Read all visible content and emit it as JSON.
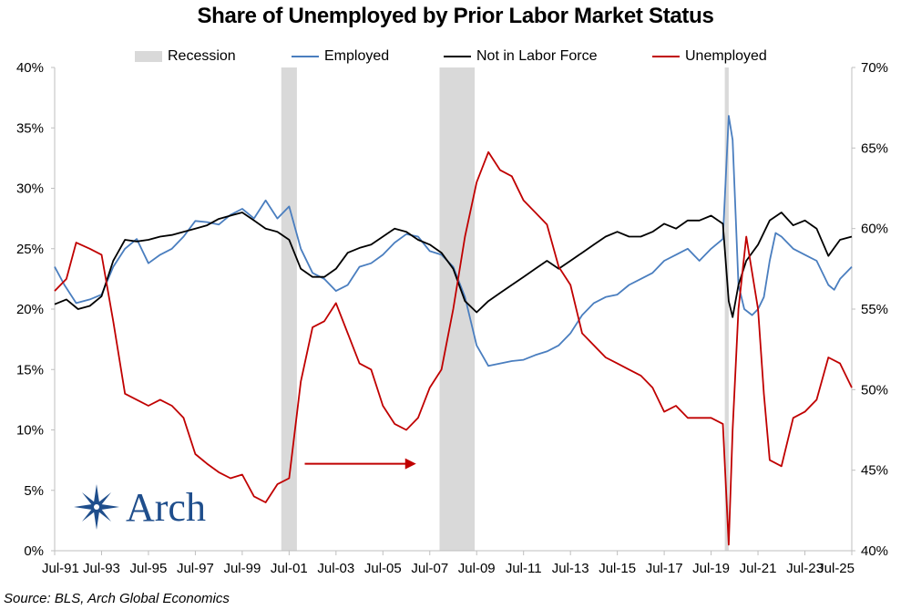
{
  "title": "Share of Unemployed by Prior Labor Market Status",
  "source": "Source: BLS, Arch Global Economics",
  "logo": {
    "text": "Arch",
    "color": "#1f4e8c",
    "icon": "compass-star-icon"
  },
  "legend": [
    {
      "name": "Recession",
      "color": "#d9d9d9",
      "kind": "band"
    },
    {
      "name": "Employed",
      "color": "#4a7ebf",
      "kind": "line"
    },
    {
      "name": "Not in Labor Force",
      "color": "#000000",
      "kind": "line"
    },
    {
      "name": "Unemployed",
      "color": "#c00000",
      "kind": "line"
    }
  ],
  "chart_data": {
    "type": "line",
    "x_range": [
      "1991-07",
      "2025-07"
    ],
    "x_ticks": [
      "Jul-91",
      "Jul-93",
      "Jul-95",
      "Jul-97",
      "Jul-99",
      "Jul-01",
      "Jul-03",
      "Jul-05",
      "Jul-07",
      "Jul-09",
      "Jul-11",
      "Jul-13",
      "Jul-15",
      "Jul-17",
      "Jul-19",
      "Jul-21",
      "Jul-23",
      "Jul-25"
    ],
    "y_left": {
      "min": 0,
      "max": 40,
      "ticks": [
        "0%",
        "5%",
        "10%",
        "15%",
        "20%",
        "25%",
        "30%",
        "35%",
        "40%"
      ]
    },
    "y_right": {
      "min": 40,
      "max": 70,
      "ticks": [
        "40%",
        "45%",
        "50%",
        "55%",
        "60%",
        "65%",
        "70%"
      ]
    },
    "grid": false,
    "legend_position": "top",
    "recessions": [
      [
        "2001-03",
        "2001-11"
      ],
      [
        "2007-12",
        "2009-06"
      ],
      [
        "2020-02",
        "2020-04"
      ]
    ],
    "annotation": {
      "type": "arrow",
      "color": "#c00000",
      "from": "2002-03",
      "to": "2006-12",
      "y": 7.2,
      "axis": "left"
    },
    "series": [
      {
        "name": "Employed",
        "axis": "left",
        "color": "#4a7ebf",
        "points": [
          [
            "1991-07",
            23.5
          ],
          [
            "1991-12",
            22.0
          ],
          [
            "1992-06",
            20.5
          ],
          [
            "1993-01",
            20.8
          ],
          [
            "1993-07",
            21.2
          ],
          [
            "1994-01",
            23.5
          ],
          [
            "1994-07",
            25.0
          ],
          [
            "1995-01",
            25.8
          ],
          [
            "1995-07",
            23.8
          ],
          [
            "1996-01",
            24.5
          ],
          [
            "1996-07",
            25.0
          ],
          [
            "1997-01",
            26.0
          ],
          [
            "1997-07",
            27.3
          ],
          [
            "1998-01",
            27.2
          ],
          [
            "1998-07",
            27.0
          ],
          [
            "1999-01",
            27.8
          ],
          [
            "1999-07",
            28.3
          ],
          [
            "2000-01",
            27.5
          ],
          [
            "2000-07",
            29.0
          ],
          [
            "2001-01",
            27.5
          ],
          [
            "2001-07",
            28.5
          ],
          [
            "2002-01",
            25.0
          ],
          [
            "2002-07",
            23.0
          ],
          [
            "2003-01",
            22.5
          ],
          [
            "2003-07",
            21.5
          ],
          [
            "2004-01",
            22.0
          ],
          [
            "2004-07",
            23.5
          ],
          [
            "2005-01",
            23.8
          ],
          [
            "2005-07",
            24.5
          ],
          [
            "2006-01",
            25.5
          ],
          [
            "2006-07",
            26.2
          ],
          [
            "2007-01",
            26.0
          ],
          [
            "2007-07",
            24.8
          ],
          [
            "2008-01",
            24.5
          ],
          [
            "2008-07",
            23.5
          ],
          [
            "2009-01",
            21.0
          ],
          [
            "2009-07",
            17.0
          ],
          [
            "2010-01",
            15.3
          ],
          [
            "2010-07",
            15.5
          ],
          [
            "2011-01",
            15.7
          ],
          [
            "2011-07",
            15.8
          ],
          [
            "2012-01",
            16.2
          ],
          [
            "2012-07",
            16.5
          ],
          [
            "2013-01",
            17.0
          ],
          [
            "2013-07",
            18.0
          ],
          [
            "2014-01",
            19.5
          ],
          [
            "2014-07",
            20.5
          ],
          [
            "2015-01",
            21.0
          ],
          [
            "2015-07",
            21.2
          ],
          [
            "2016-01",
            22.0
          ],
          [
            "2016-07",
            22.5
          ],
          [
            "2017-01",
            23.0
          ],
          [
            "2017-07",
            24.0
          ],
          [
            "2018-01",
            24.5
          ],
          [
            "2018-07",
            25.0
          ],
          [
            "2019-01",
            24.0
          ],
          [
            "2019-07",
            25.0
          ],
          [
            "2020-01",
            25.8
          ],
          [
            "2020-04",
            36.0
          ],
          [
            "2020-06",
            34.0
          ],
          [
            "2020-09",
            22.0
          ],
          [
            "2020-12",
            20.0
          ],
          [
            "2021-04",
            19.5
          ],
          [
            "2021-07",
            20.0
          ],
          [
            "2021-10",
            21.0
          ],
          [
            "2022-01",
            24.0
          ],
          [
            "2022-04",
            26.3
          ],
          [
            "2022-07",
            26.0
          ],
          [
            "2023-01",
            25.0
          ],
          [
            "2023-07",
            24.5
          ],
          [
            "2024-01",
            24.0
          ],
          [
            "2024-07",
            22.0
          ],
          [
            "2024-10",
            21.6
          ],
          [
            "2025-01",
            22.5
          ],
          [
            "2025-07",
            23.5
          ]
        ]
      },
      {
        "name": "Not in Labor Force",
        "axis": "right",
        "color": "#000000",
        "points": [
          [
            "1991-07",
            55.3
          ],
          [
            "1992-01",
            55.6
          ],
          [
            "1992-07",
            55.0
          ],
          [
            "1993-01",
            55.2
          ],
          [
            "1993-07",
            55.8
          ],
          [
            "1994-01",
            58.0
          ],
          [
            "1994-07",
            59.3
          ],
          [
            "1995-01",
            59.2
          ],
          [
            "1995-07",
            59.3
          ],
          [
            "1996-01",
            59.5
          ],
          [
            "1996-07",
            59.6
          ],
          [
            "1997-01",
            59.8
          ],
          [
            "1997-07",
            60.0
          ],
          [
            "1998-01",
            60.2
          ],
          [
            "1998-07",
            60.6
          ],
          [
            "1999-01",
            60.8
          ],
          [
            "1999-07",
            61.0
          ],
          [
            "2000-01",
            60.5
          ],
          [
            "2000-07",
            60.0
          ],
          [
            "2001-01",
            59.8
          ],
          [
            "2001-07",
            59.3
          ],
          [
            "2002-01",
            57.5
          ],
          [
            "2002-07",
            57.0
          ],
          [
            "2003-01",
            57.0
          ],
          [
            "2003-07",
            57.5
          ],
          [
            "2004-01",
            58.5
          ],
          [
            "2004-07",
            58.8
          ],
          [
            "2005-01",
            59.0
          ],
          [
            "2005-07",
            59.5
          ],
          [
            "2006-01",
            60.0
          ],
          [
            "2006-07",
            59.8
          ],
          [
            "2007-01",
            59.3
          ],
          [
            "2007-07",
            59.0
          ],
          [
            "2008-01",
            58.5
          ],
          [
            "2008-07",
            57.5
          ],
          [
            "2009-01",
            55.5
          ],
          [
            "2009-07",
            54.8
          ],
          [
            "2010-01",
            55.5
          ],
          [
            "2010-07",
            56.0
          ],
          [
            "2011-01",
            56.5
          ],
          [
            "2011-07",
            57.0
          ],
          [
            "2012-01",
            57.5
          ],
          [
            "2012-07",
            58.0
          ],
          [
            "2013-01",
            57.5
          ],
          [
            "2013-07",
            58.0
          ],
          [
            "2014-01",
            58.5
          ],
          [
            "2014-07",
            59.0
          ],
          [
            "2015-01",
            59.5
          ],
          [
            "2015-07",
            59.8
          ],
          [
            "2016-01",
            59.5
          ],
          [
            "2016-07",
            59.5
          ],
          [
            "2017-01",
            59.8
          ],
          [
            "2017-07",
            60.3
          ],
          [
            "2018-01",
            60.0
          ],
          [
            "2018-07",
            60.5
          ],
          [
            "2019-01",
            60.5
          ],
          [
            "2019-07",
            60.8
          ],
          [
            "2020-01",
            60.3
          ],
          [
            "2020-04",
            55.5
          ],
          [
            "2020-06",
            54.5
          ],
          [
            "2020-09",
            56.5
          ],
          [
            "2021-01",
            58.0
          ],
          [
            "2021-07",
            59.0
          ],
          [
            "2022-01",
            60.5
          ],
          [
            "2022-07",
            61.0
          ],
          [
            "2023-01",
            60.2
          ],
          [
            "2023-07",
            60.5
          ],
          [
            "2024-01",
            60.0
          ],
          [
            "2024-07",
            58.3
          ],
          [
            "2025-01",
            59.3
          ],
          [
            "2025-07",
            59.5
          ]
        ]
      },
      {
        "name": "Unemployed",
        "axis": "left",
        "color": "#c00000",
        "points": [
          [
            "1991-07",
            21.5
          ],
          [
            "1992-01",
            22.5
          ],
          [
            "1992-06",
            25.5
          ],
          [
            "1993-01",
            25.0
          ],
          [
            "1993-07",
            24.5
          ],
          [
            "1994-01",
            19.0
          ],
          [
            "1994-07",
            13.0
          ],
          [
            "1995-01",
            12.5
          ],
          [
            "1995-07",
            12.0
          ],
          [
            "1996-01",
            12.5
          ],
          [
            "1996-07",
            12.0
          ],
          [
            "1997-01",
            11.0
          ],
          [
            "1997-07",
            8.0
          ],
          [
            "1998-01",
            7.2
          ],
          [
            "1998-07",
            6.5
          ],
          [
            "1999-01",
            6.0
          ],
          [
            "1999-07",
            6.3
          ],
          [
            "2000-01",
            4.5
          ],
          [
            "2000-07",
            4.0
          ],
          [
            "2001-01",
            5.5
          ],
          [
            "2001-07",
            6.0
          ],
          [
            "2002-01",
            14.0
          ],
          [
            "2002-07",
            18.5
          ],
          [
            "2003-01",
            19.0
          ],
          [
            "2003-07",
            20.5
          ],
          [
            "2004-01",
            18.0
          ],
          [
            "2004-07",
            15.5
          ],
          [
            "2005-01",
            15.0
          ],
          [
            "2005-07",
            12.0
          ],
          [
            "2006-01",
            10.5
          ],
          [
            "2006-07",
            10.0
          ],
          [
            "2007-01",
            11.0
          ],
          [
            "2007-07",
            13.5
          ],
          [
            "2008-01",
            15.0
          ],
          [
            "2008-07",
            20.0
          ],
          [
            "2009-01",
            26.0
          ],
          [
            "2009-07",
            30.5
          ],
          [
            "2010-01",
            33.0
          ],
          [
            "2010-07",
            31.5
          ],
          [
            "2011-01",
            31.0
          ],
          [
            "2011-07",
            29.0
          ],
          [
            "2012-01",
            28.0
          ],
          [
            "2012-07",
            27.0
          ],
          [
            "2013-01",
            23.5
          ],
          [
            "2013-07",
            22.0
          ],
          [
            "2014-01",
            18.0
          ],
          [
            "2014-07",
            17.0
          ],
          [
            "2015-01",
            16.0
          ],
          [
            "2015-07",
            15.5
          ],
          [
            "2016-01",
            15.0
          ],
          [
            "2016-07",
            14.5
          ],
          [
            "2017-01",
            13.5
          ],
          [
            "2017-07",
            11.5
          ],
          [
            "2018-01",
            12.0
          ],
          [
            "2018-07",
            11.0
          ],
          [
            "2019-01",
            11.0
          ],
          [
            "2019-07",
            11.0
          ],
          [
            "2020-01",
            10.5
          ],
          [
            "2020-04",
            0.5
          ],
          [
            "2020-06",
            10.0
          ],
          [
            "2020-09",
            20.0
          ],
          [
            "2021-01",
            26.0
          ],
          [
            "2021-07",
            20.0
          ],
          [
            "2021-10",
            13.0
          ],
          [
            "2022-01",
            7.5
          ],
          [
            "2022-07",
            7.0
          ],
          [
            "2023-01",
            11.0
          ],
          [
            "2023-07",
            11.5
          ],
          [
            "2024-01",
            12.5
          ],
          [
            "2024-07",
            16.0
          ],
          [
            "2025-01",
            15.5
          ],
          [
            "2025-07",
            13.5
          ]
        ]
      }
    ]
  }
}
